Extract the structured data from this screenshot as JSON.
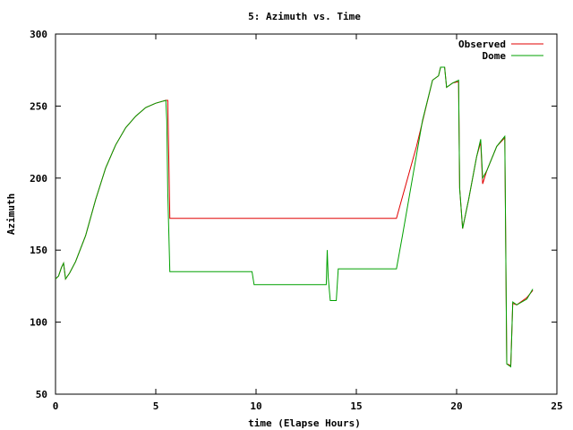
{
  "chart_data": {
    "type": "line",
    "title": "5: Azimuth vs. Time",
    "xlabel": "time (Elapse Hours)",
    "ylabel": "Azimuth",
    "xlim": [
      0,
      25
    ],
    "ylim": [
      50,
      300
    ],
    "xticks": [
      0,
      5,
      10,
      15,
      20,
      25
    ],
    "yticks": [
      50,
      100,
      150,
      200,
      250,
      300
    ],
    "grid": false,
    "legend_position": "top-right",
    "series": [
      {
        "name": "Observed",
        "color": "#e00000",
        "points": [
          [
            0.0,
            130
          ],
          [
            0.15,
            132
          ],
          [
            0.3,
            138
          ],
          [
            0.4,
            141
          ],
          [
            0.5,
            130
          ],
          [
            0.7,
            134
          ],
          [
            1.0,
            142
          ],
          [
            1.5,
            160
          ],
          [
            2.0,
            185
          ],
          [
            2.5,
            207
          ],
          [
            3.0,
            223
          ],
          [
            3.5,
            235
          ],
          [
            4.0,
            243
          ],
          [
            4.5,
            249
          ],
          [
            5.0,
            252
          ],
          [
            5.5,
            254
          ],
          [
            5.6,
            254
          ],
          [
            5.7,
            172
          ],
          [
            10.0,
            172
          ],
          [
            15.0,
            172
          ],
          [
            17.0,
            172
          ],
          [
            18.0,
            222
          ],
          [
            18.8,
            268
          ],
          [
            19.1,
            271
          ],
          [
            19.2,
            277
          ],
          [
            19.4,
            277
          ],
          [
            19.5,
            263
          ],
          [
            19.8,
            266
          ],
          [
            20.1,
            267
          ],
          [
            20.15,
            193
          ],
          [
            20.3,
            165
          ],
          [
            20.6,
            185
          ],
          [
            21.0,
            215
          ],
          [
            21.2,
            225
          ],
          [
            21.3,
            196
          ],
          [
            21.5,
            205
          ],
          [
            22.0,
            222
          ],
          [
            22.4,
            228
          ],
          [
            22.5,
            71
          ],
          [
            22.7,
            70
          ],
          [
            22.8,
            113
          ],
          [
            23.0,
            112
          ],
          [
            23.5,
            117
          ],
          [
            23.8,
            122
          ]
        ]
      },
      {
        "name": "Dome",
        "color": "#00a000",
        "points": [
          [
            0.0,
            130
          ],
          [
            0.15,
            132
          ],
          [
            0.3,
            138
          ],
          [
            0.4,
            141
          ],
          [
            0.5,
            130
          ],
          [
            0.7,
            134
          ],
          [
            1.0,
            142
          ],
          [
            1.5,
            160
          ],
          [
            2.0,
            185
          ],
          [
            2.5,
            207
          ],
          [
            3.0,
            223
          ],
          [
            3.5,
            235
          ],
          [
            4.0,
            243
          ],
          [
            4.5,
            249
          ],
          [
            5.0,
            252
          ],
          [
            5.5,
            254
          ],
          [
            5.55,
            240
          ],
          [
            5.6,
            190
          ],
          [
            5.7,
            135
          ],
          [
            9.8,
            135
          ],
          [
            9.9,
            126
          ],
          [
            13.5,
            126
          ],
          [
            13.55,
            150
          ],
          [
            13.6,
            131
          ],
          [
            13.7,
            115
          ],
          [
            14.0,
            115
          ],
          [
            14.1,
            137
          ],
          [
            17.0,
            137
          ],
          [
            17.3,
            160
          ],
          [
            17.8,
            200
          ],
          [
            18.3,
            240
          ],
          [
            18.8,
            268
          ],
          [
            19.1,
            271
          ],
          [
            19.2,
            277
          ],
          [
            19.4,
            277
          ],
          [
            19.5,
            263
          ],
          [
            19.8,
            266
          ],
          [
            20.1,
            268
          ],
          [
            20.15,
            193
          ],
          [
            20.3,
            165
          ],
          [
            20.6,
            185
          ],
          [
            21.0,
            215
          ],
          [
            21.2,
            227
          ],
          [
            21.3,
            200
          ],
          [
            21.5,
            205
          ],
          [
            22.0,
            222
          ],
          [
            22.4,
            229
          ],
          [
            22.5,
            71
          ],
          [
            22.7,
            69
          ],
          [
            22.8,
            114
          ],
          [
            23.0,
            112
          ],
          [
            23.5,
            116
          ],
          [
            23.8,
            123
          ]
        ]
      }
    ]
  }
}
